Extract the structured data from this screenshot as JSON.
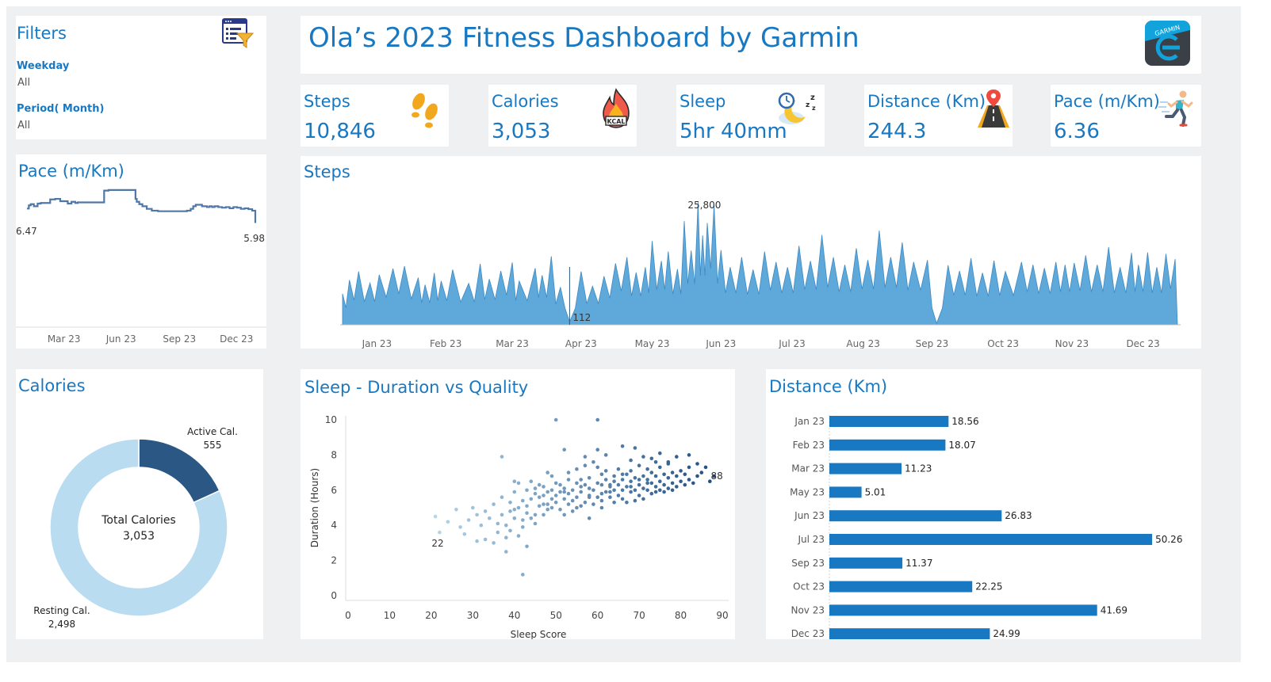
{
  "filters": {
    "title": "Filters",
    "weekday_label": "Weekday",
    "weekday_value": "All",
    "period_label": "Period( Month)",
    "period_value": "All"
  },
  "header": {
    "title": "Ola’s 2023 Fitness Dashboard by Garmin",
    "logo_text": "GARMIN"
  },
  "kpis": [
    {
      "title": "Steps",
      "value": "10,846"
    },
    {
      "title": "Calories",
      "value": "3,053",
      "icon_text": "KCAL"
    },
    {
      "title": "Sleep",
      "value": "5hr 40mm"
    },
    {
      "title": "Distance (Km)",
      "value": "244.3"
    },
    {
      "title": "Pace (m/Km)",
      "value": "6.36"
    }
  ],
  "colors": {
    "accent": "#1878c2",
    "steps_fill": "#5ea8da",
    "pace_line": "#4f78a8",
    "active_cal": "#2a5783",
    "resting_cal": "#b9dcf1",
    "distance_bar": "#1878c2",
    "sleep_light": "#b6d7eb",
    "sleep_dark": "#1f4e85"
  },
  "chart_data": [
    {
      "id": "pace",
      "type": "line",
      "title": "Pace (m/Km)",
      "x_ticks": [
        "Mar 23",
        "Jun 23",
        "Sep 23",
        "Dec 23"
      ],
      "annotations": [
        {
          "label": "6.47",
          "at": "start"
        },
        {
          "label": "5.98",
          "at": "end"
        }
      ],
      "x": [
        1,
        4,
        7,
        12,
        18,
        23,
        30,
        38,
        46,
        54,
        60,
        66,
        72,
        78,
        82,
        90,
        100,
        110,
        120,
        124,
        131,
        138,
        146,
        152,
        160,
        166,
        172,
        174,
        176,
        180,
        185,
        192,
        200,
        210,
        220,
        230,
        240,
        246,
        250,
        256,
        262,
        266,
        270,
        274,
        280,
        284,
        288,
        292,
        296,
        300,
        306,
        312,
        318,
        324,
        330,
        336,
        342,
        348,
        354,
        360,
        365
      ],
      "values": [
        6.47,
        6.58,
        6.62,
        6.55,
        6.64,
        6.66,
        6.66,
        6.78,
        6.8,
        6.72,
        6.72,
        6.64,
        6.7,
        6.66,
        6.68,
        6.68,
        6.68,
        6.68,
        6.68,
        7.08,
        7.1,
        7.1,
        7.1,
        7.1,
        7.1,
        7.1,
        7.1,
        6.8,
        6.7,
        6.62,
        6.55,
        6.46,
        6.4,
        6.38,
        6.38,
        6.38,
        6.38,
        6.38,
        6.38,
        6.4,
        6.46,
        6.55,
        6.6,
        6.6,
        6.55,
        6.55,
        6.52,
        6.55,
        6.52,
        6.55,
        6.52,
        6.5,
        6.52,
        6.48,
        6.52,
        6.5,
        6.46,
        6.48,
        6.45,
        6.4,
        5.98
      ],
      "ylim": [
        2.5,
        7.5
      ]
    },
    {
      "id": "steps",
      "type": "area",
      "title": "Steps",
      "x_ticks": [
        "Jan 23",
        "Feb 23",
        "Mar 23",
        "Apr 23",
        "May 23",
        "Jun 23",
        "Jul 23",
        "Aug 23",
        "Sep 23",
        "Oct 23",
        "Nov 23",
        "Dec 23"
      ],
      "annotations": [
        {
          "label": "25,800",
          "value": 25800
        },
        {
          "label": "112",
          "value": 112
        }
      ],
      "peaks": [
        [
          1,
          6500
        ],
        [
          4,
          9400
        ],
        [
          8,
          11200
        ],
        [
          13,
          8800
        ],
        [
          17,
          10500
        ],
        [
          23,
          11800
        ],
        [
          28,
          12300
        ],
        [
          34,
          9900
        ],
        [
          37,
          8400
        ],
        [
          41,
          10900
        ],
        [
          44,
          9200
        ],
        [
          49,
          11600
        ],
        [
          56,
          8700
        ],
        [
          61,
          12800
        ],
        [
          65,
          9600
        ],
        [
          70,
          11300
        ],
        [
          75,
          13100
        ],
        [
          78,
          9200
        ],
        [
          85,
          11900
        ],
        [
          88,
          10400
        ],
        [
          92,
          14400
        ],
        [
          96,
          7900
        ],
        [
          100,
          600
        ],
        [
          105,
          11200
        ],
        [
          110,
          8100
        ],
        [
          115,
          10200
        ],
        [
          120,
          12900
        ],
        [
          125,
          14200
        ],
        [
          129,
          11000
        ],
        [
          133,
          12100
        ],
        [
          136,
          17600
        ],
        [
          140,
          13400
        ],
        [
          143,
          15400
        ],
        [
          147,
          11700
        ],
        [
          150,
          21800
        ],
        [
          153,
          15600
        ],
        [
          156,
          25800
        ],
        [
          158,
          18800
        ],
        [
          160,
          21400
        ],
        [
          163,
          25200
        ],
        [
          166,
          15700
        ],
        [
          170,
          12100
        ],
        [
          175,
          14200
        ],
        [
          180,
          11600
        ],
        [
          185,
          15400
        ],
        [
          190,
          13200
        ],
        [
          195,
          12100
        ],
        [
          200,
          16600
        ],
        [
          205,
          13400
        ],
        [
          210,
          18900
        ],
        [
          215,
          14200
        ],
        [
          220,
          12600
        ],
        [
          225,
          16100
        ],
        [
          230,
          13600
        ],
        [
          235,
          19800
        ],
        [
          240,
          14200
        ],
        [
          245,
          17300
        ],
        [
          250,
          13200
        ],
        [
          256,
          13600
        ],
        [
          260,
          300
        ],
        [
          265,
          12500
        ],
        [
          270,
          11300
        ],
        [
          275,
          14000
        ],
        [
          280,
          10900
        ],
        [
          285,
          13500
        ],
        [
          290,
          11200
        ],
        [
          297,
          13200
        ],
        [
          302,
          12600
        ],
        [
          307,
          11900
        ],
        [
          312,
          13200
        ],
        [
          316,
          12600
        ],
        [
          320,
          13000
        ],
        [
          325,
          14600
        ],
        [
          330,
          12600
        ],
        [
          335,
          16300
        ],
        [
          340,
          12100
        ],
        [
          345,
          15100
        ],
        [
          348,
          12600
        ],
        [
          352,
          15200
        ],
        [
          356,
          12100
        ],
        [
          360,
          14900
        ],
        [
          364,
          13800
        ]
      ],
      "ylim": [
        0,
        28000
      ]
    },
    {
      "id": "calories",
      "type": "pie",
      "title": "Calories",
      "center_label": "Total Calories",
      "center_value": "3,053",
      "slices": [
        {
          "name": "Active Cal.",
          "value": 555,
          "label": "555"
        },
        {
          "name": "Resting Cal.",
          "value": 2498,
          "label": "2,498"
        }
      ]
    },
    {
      "id": "sleep",
      "type": "scatter",
      "title": "Sleep - Duration vs Quality",
      "xlabel": "Sleep Score",
      "ylabel": "Duration (Hours)",
      "x_ticks": [
        0,
        10,
        20,
        30,
        40,
        50,
        60,
        70,
        80,
        90
      ],
      "y_ticks": [
        0,
        2,
        4,
        6,
        8,
        10
      ],
      "xlim": [
        0,
        90
      ],
      "ylim": [
        0,
        10
      ],
      "annotations": [
        {
          "label": "22",
          "x": 22,
          "y": 3.6
        },
        {
          "label": "88",
          "x": 88,
          "y": 6.8
        }
      ],
      "points": [
        [
          22,
          3.6
        ],
        [
          21,
          4.5
        ],
        [
          24,
          4.2
        ],
        [
          26,
          4.9
        ],
        [
          27,
          3.9
        ],
        [
          28,
          3.5
        ],
        [
          29,
          4.3
        ],
        [
          30,
          5.0
        ],
        [
          31,
          3.1
        ],
        [
          32,
          4.0
        ],
        [
          33,
          4.8
        ],
        [
          33,
          3.2
        ],
        [
          34,
          4.4
        ],
        [
          35,
          5.2
        ],
        [
          36,
          3.6
        ],
        [
          36,
          4.1
        ],
        [
          37,
          4.6
        ],
        [
          37,
          5.6
        ],
        [
          37,
          7.9
        ],
        [
          38,
          4.0
        ],
        [
          38,
          3.3
        ],
        [
          39,
          4.8
        ],
        [
          39,
          5.3
        ],
        [
          39,
          3.7
        ],
        [
          40,
          4.4
        ],
        [
          40,
          5.9
        ],
        [
          40,
          4.9
        ],
        [
          41,
          3.4
        ],
        [
          41,
          5.0
        ],
        [
          41,
          6.4
        ],
        [
          42,
          4.3
        ],
        [
          42,
          5.4
        ],
        [
          42,
          3.9
        ],
        [
          42,
          1.2
        ],
        [
          43,
          4.7
        ],
        [
          43,
          6.0
        ],
        [
          43,
          5.1
        ],
        [
          44,
          5.5
        ],
        [
          44,
          4.4
        ],
        [
          45,
          5.8
        ],
        [
          45,
          6.1
        ],
        [
          45,
          4.6
        ],
        [
          46,
          5.1
        ],
        [
          46,
          5.6
        ],
        [
          47,
          4.6
        ],
        [
          47,
          6.2
        ],
        [
          47,
          5.2
        ],
        [
          48,
          5.9
        ],
        [
          48,
          7.0
        ],
        [
          48,
          4.9
        ],
        [
          49,
          5.5
        ],
        [
          49,
          6.0
        ],
        [
          49,
          5.0
        ],
        [
          50,
          5.7
        ],
        [
          50,
          6.4
        ],
        [
          50,
          5.3
        ],
        [
          50,
          10.0
        ],
        [
          51,
          4.9
        ],
        [
          51,
          5.9
        ],
        [
          51,
          6.3
        ],
        [
          52,
          5.5
        ],
        [
          52,
          6.1
        ],
        [
          52,
          8.3
        ],
        [
          53,
          5.2
        ],
        [
          53,
          5.8
        ],
        [
          53,
          6.6
        ],
        [
          54,
          4.8
        ],
        [
          54,
          6.0
        ],
        [
          54,
          5.4
        ],
        [
          55,
          5.6
        ],
        [
          55,
          6.4
        ],
        [
          55,
          7.2
        ],
        [
          56,
          5.1
        ],
        [
          56,
          5.9
        ],
        [
          56,
          6.6
        ],
        [
          57,
          5.3
        ],
        [
          57,
          6.3
        ],
        [
          57,
          7.4
        ],
        [
          58,
          5.7
        ],
        [
          58,
          6.7
        ],
        [
          58,
          6.1
        ],
        [
          59,
          5.2
        ],
        [
          59,
          6.0
        ],
        [
          59,
          7.6
        ],
        [
          60,
          5.6
        ],
        [
          60,
          6.4
        ],
        [
          60,
          8.3
        ],
        [
          60,
          10.0
        ],
        [
          61,
          5.4
        ],
        [
          61,
          6.3
        ],
        [
          61,
          6.9
        ],
        [
          62,
          5.9
        ],
        [
          62,
          6.6
        ],
        [
          62,
          7.1
        ],
        [
          63,
          5.6
        ],
        [
          63,
          6.2
        ],
        [
          63,
          5.9
        ],
        [
          64,
          6.5
        ],
        [
          64,
          6.0
        ],
        [
          64,
          6.8
        ],
        [
          65,
          5.7
        ],
        [
          65,
          6.3
        ],
        [
          65,
          7.2
        ],
        [
          66,
          6.0
        ],
        [
          66,
          6.6
        ],
        [
          66,
          5.5
        ],
        [
          67,
          5.3
        ],
        [
          67,
          6.2
        ],
        [
          67,
          6.9
        ],
        [
          68,
          5.9
        ],
        [
          68,
          6.5
        ],
        [
          68,
          7.1
        ],
        [
          69,
          5.4
        ],
        [
          69,
          6.0
        ],
        [
          69,
          6.7
        ],
        [
          70,
          5.7
        ],
        [
          70,
          6.3
        ],
        [
          70,
          7.4
        ],
        [
          71,
          5.5
        ],
        [
          71,
          6.1
        ],
        [
          71,
          6.8
        ],
        [
          72,
          6.0
        ],
        [
          72,
          6.6
        ],
        [
          72,
          7.2
        ],
        [
          73,
          5.8
        ],
        [
          73,
          6.4
        ],
        [
          73,
          7.0
        ],
        [
          74,
          6.2
        ],
        [
          74,
          6.8
        ],
        [
          74,
          5.9
        ],
        [
          75,
          6.0
        ],
        [
          75,
          6.5
        ],
        [
          75,
          7.3
        ],
        [
          76,
          6.3
        ],
        [
          76,
          6.9
        ],
        [
          76,
          5.9
        ],
        [
          77,
          6.1
        ],
        [
          77,
          6.7
        ],
        [
          77,
          7.5
        ],
        [
          78,
          6.4
        ],
        [
          78,
          7.0
        ],
        [
          78,
          6.0
        ],
        [
          79,
          6.2
        ],
        [
          79,
          6.8
        ],
        [
          80,
          6.5
        ],
        [
          80,
          7.1
        ],
        [
          81,
          6.3
        ],
        [
          81,
          6.9
        ],
        [
          82,
          6.6
        ],
        [
          82,
          7.3
        ],
        [
          83,
          6.4
        ],
        [
          84,
          6.8
        ],
        [
          85,
          7.0
        ],
        [
          87,
          6.5
        ],
        [
          88,
          6.8
        ],
        [
          63,
          6.3
        ],
        [
          66,
          6.9
        ],
        [
          68,
          6.2
        ],
        [
          70,
          6.6
        ],
        [
          71,
          7.9
        ],
        [
          72,
          6.4
        ],
        [
          74,
          7.6
        ],
        [
          56,
          6.2
        ],
        [
          58,
          5.6
        ],
        [
          61,
          5.8
        ],
        [
          64,
          5.3
        ],
        [
          52,
          5.9
        ],
        [
          47,
          5.7
        ],
        [
          45,
          4.1
        ],
        [
          43,
          2.8
        ],
        [
          38,
          2.5
        ],
        [
          35,
          3.0
        ],
        [
          31,
          4.6
        ],
        [
          46,
          6.3
        ],
        [
          49,
          6.8
        ],
        [
          53,
          7.0
        ],
        [
          57,
          7.9
        ],
        [
          60,
          7.3
        ],
        [
          62,
          8.0
        ],
        [
          66,
          8.5
        ],
        [
          68,
          7.7
        ],
        [
          69,
          8.4
        ],
        [
          73,
          7.8
        ],
        [
          75,
          8.1
        ],
        [
          77,
          7.6
        ],
        [
          79,
          7.9
        ],
        [
          82,
          8.0
        ],
        [
          84,
          7.5
        ],
        [
          86,
          7.3
        ],
        [
          40,
          6.5
        ],
        [
          44,
          6.5
        ],
        [
          48,
          5.2
        ],
        [
          52,
          4.6
        ],
        [
          55,
          5.0
        ],
        [
          58,
          4.4
        ],
        [
          61,
          5.0
        ]
      ]
    },
    {
      "id": "distance",
      "type": "bar",
      "orientation": "horizontal",
      "title": "Distance (Km)",
      "categories": [
        "Jan 23",
        "Feb 23",
        "Mar 23",
        "May 23",
        "Jun 23",
        "Jul 23",
        "Sep 23",
        "Oct 23",
        "Nov 23",
        "Dec 23"
      ],
      "values": [
        18.56,
        18.07,
        11.23,
        5.01,
        26.83,
        50.26,
        11.37,
        22.25,
        41.69,
        24.99
      ],
      "labels": [
        "18.56",
        "18.07",
        "11.23",
        "5.01",
        "26.83",
        "50.26",
        "11.37",
        "22.25",
        "41.69",
        "24.99"
      ],
      "xlim": [
        0,
        55
      ]
    }
  ]
}
